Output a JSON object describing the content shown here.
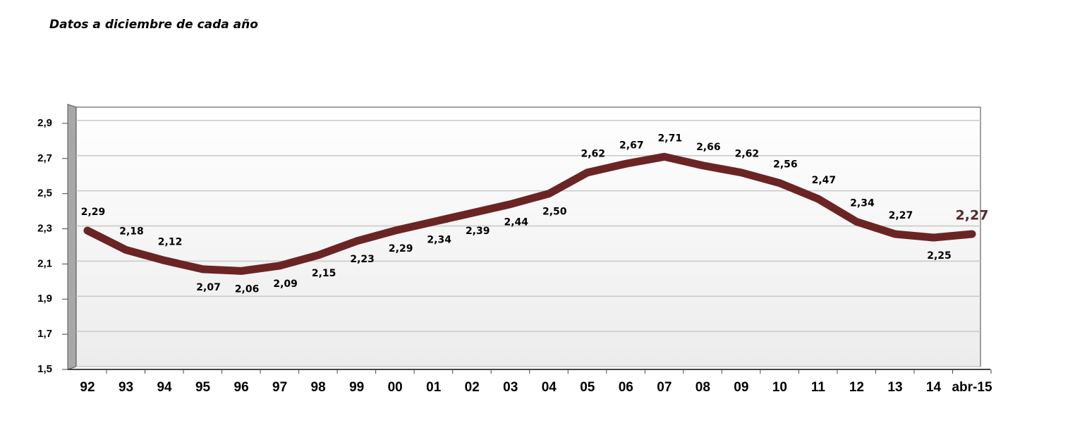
{
  "chart_data": {
    "type": "line",
    "title": "Datos  a diciembre de cada año",
    "categories": [
      "92",
      "93",
      "94",
      "95",
      "96",
      "97",
      "98",
      "99",
      "00",
      "01",
      "02",
      "03",
      "04",
      "05",
      "06",
      "07",
      "08",
      "09",
      "10",
      "11",
      "12",
      "13",
      "14",
      "abr-15"
    ],
    "series": [
      {
        "name": "Datos",
        "color": "#6b2424",
        "values": [
          2.29,
          2.18,
          2.12,
          2.07,
          2.06,
          2.09,
          2.15,
          2.23,
          2.29,
          2.34,
          2.39,
          2.44,
          2.5,
          2.62,
          2.67,
          2.71,
          2.66,
          2.62,
          2.56,
          2.47,
          2.34,
          2.27,
          2.25,
          2.27
        ],
        "value_labels": [
          "2,29",
          "2,18",
          "2,12",
          "2,07",
          "2,06",
          "2,09",
          "2,15",
          "2,23",
          "2,29",
          "2,34",
          "2,39",
          "2,44",
          "2,50",
          "2,62",
          "2,67",
          "2,71",
          "2,66",
          "2,62",
          "2,56",
          "2,47",
          "2,34",
          "2,27",
          "2,25",
          "2,27"
        ]
      }
    ],
    "ylim": [
      1.5,
      3.0
    ],
    "yticks": [
      {
        "value": 1.5,
        "label": "1,5"
      },
      {
        "value": 1.7,
        "label": "1,7"
      },
      {
        "value": 1.9,
        "label": "1,9"
      },
      {
        "value": 2.1,
        "label": "2,1"
      },
      {
        "value": 2.3,
        "label": "2,3"
      },
      {
        "value": 2.5,
        "label": "2,5"
      },
      {
        "value": 2.7,
        "label": "2,7"
      },
      {
        "value": 2.9,
        "label": "2,9"
      }
    ],
    "grid": true,
    "last_label_color": "#5a2a2a"
  }
}
